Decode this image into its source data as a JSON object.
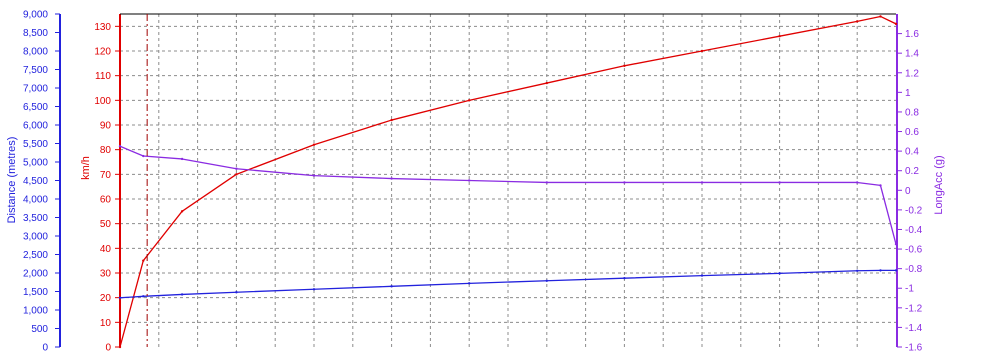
{
  "chart_data": {
    "type": "line",
    "axes": [
      {
        "id": "distance",
        "label": "Distance (metres)",
        "color": "#2222dd",
        "ylim": [
          0,
          9000
        ],
        "ticks": [
          "0",
          "500",
          "1,000",
          "1,500",
          "2,000",
          "2,500",
          "3,000",
          "3,500",
          "4,000",
          "4,500",
          "5,000",
          "5,500",
          "6,000",
          "6,500",
          "7,000",
          "7,500",
          "8,000",
          "8,500",
          "9,000"
        ]
      },
      {
        "id": "speed",
        "label": "km/h",
        "color": "#e00000",
        "ylim": [
          0,
          135
        ],
        "ticks": [
          "0",
          "10",
          "20",
          "30",
          "40",
          "50",
          "60",
          "70",
          "80",
          "90",
          "100",
          "110",
          "120",
          "130"
        ]
      },
      {
        "id": "longacc",
        "label": "LongAcc (g)",
        "color": "#8a2be2",
        "ylim": [
          -1.6,
          1.8
        ],
        "ticks": [
          "-1.6",
          "-1.4",
          "-1.2",
          "-1",
          "-0.8",
          "-0.6",
          "-0.4",
          "-0.2",
          "0",
          "0.2",
          "0.4",
          "0.6",
          "0.8",
          "1",
          "1.2",
          "1.4",
          "1.6"
        ]
      }
    ],
    "x": [
      0,
      0.03,
      0.08,
      0.15,
      0.25,
      0.35,
      0.45,
      0.55,
      0.65,
      0.75,
      0.85,
      0.95,
      0.98,
      1.0
    ],
    "series": [
      {
        "axis": "speed",
        "color": "#e00000",
        "values": [
          0,
          35,
          55,
          70,
          82,
          92,
          100,
          107,
          114,
          120,
          126,
          132,
          134,
          131
        ]
      },
      {
        "axis": "longacc",
        "color": "#8a2be2",
        "values": [
          0.45,
          0.35,
          0.32,
          0.22,
          0.15,
          0.12,
          0.1,
          0.08,
          0.08,
          0.08,
          0.08,
          0.08,
          0.05,
          -0.55
        ]
      },
      {
        "axis": "distance",
        "color": "#2222dd",
        "values": [
          1330,
          1370,
          1420,
          1480,
          1560,
          1640,
          1720,
          1790,
          1860,
          1930,
          1990,
          2060,
          2070,
          2070
        ]
      }
    ],
    "marker_x": 0.035,
    "grid": true
  }
}
